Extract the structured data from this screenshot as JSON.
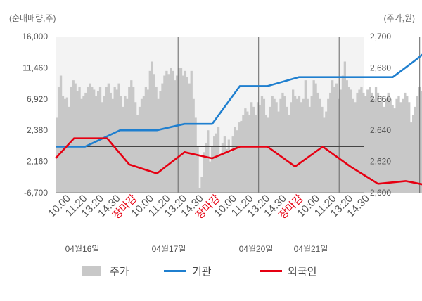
{
  "chart_data": {
    "type": "line",
    "left_axis_title": "(순매매량,주)",
    "right_axis_title": "(주가,원)",
    "left_ticks": [
      "16,000",
      "11,460",
      "6,920",
      "2,380",
      "-2,160",
      "-6,700"
    ],
    "right_ticks": [
      "2,700",
      "2,680",
      "2,660",
      "2,640",
      "2,620",
      "2,600"
    ],
    "ylim_left": [
      -6700,
      16000
    ],
    "ylim_right": [
      2600,
      2700
    ],
    "x_tick_labels": [
      "10:00",
      "11:20",
      "13:20",
      "14:30",
      "장마감",
      "10:00",
      "11:20",
      "13:20",
      "14:30",
      "장마감",
      "10:00",
      "11:20",
      "13:20",
      "14:30",
      "장마감",
      "10:00",
      "11:20",
      "13:20",
      "14:30"
    ],
    "x_tick_red": [
      false,
      false,
      false,
      false,
      true,
      false,
      false,
      false,
      false,
      true,
      false,
      false,
      false,
      false,
      true,
      false,
      false,
      false,
      false
    ],
    "date_labels": [
      "04월16일",
      "04월17일",
      "04월20일",
      "04월21일"
    ],
    "legend": [
      {
        "label": "주가",
        "color": "#c8c8c8"
      },
      {
        "label": "기관",
        "color": "#1f7fcf"
      },
      {
        "label": "외국인",
        "color": "#e60012"
      }
    ],
    "series": [
      {
        "name": "기관",
        "axis": "left",
        "x": [
          0,
          1.6,
          3.5,
          5.5,
          7,
          8.5,
          10,
          11.5,
          13.2,
          16,
          18.3,
          19.5,
          21,
          22.5
        ],
        "values": [
          0,
          0,
          2380,
          2380,
          3300,
          3300,
          8800,
          8800,
          10100,
          10100,
          10100,
          12500,
          15700,
          15700
        ]
      },
      {
        "name": "외국인",
        "axis": "left",
        "x": [
          0,
          1,
          2.8,
          4,
          5.5,
          7,
          8.5,
          10,
          11.5,
          13,
          14.5,
          16,
          17.5,
          19,
          20.5,
          22.5
        ],
        "values": [
          -1700,
          1200,
          1200,
          -2600,
          -3900,
          -800,
          -1700,
          0,
          0,
          -2900,
          0,
          -2900,
          -5400,
          -5000,
          -5800,
          -6500
        ]
      },
      {
        "name": "주가",
        "axis": "right",
        "x_range": [
          0,
          22.5
        ],
        "values": [
          2648,
          2668,
          2675,
          2662,
          2660,
          2661,
          2655,
          2668,
          2672,
          2670,
          2665,
          2668,
          2660,
          2662,
          2664,
          2668,
          2670,
          2668,
          2666,
          2662,
          2665,
          2668,
          2658,
          2662,
          2668,
          2670,
          2664,
          2660,
          2668,
          2666,
          2670,
          2662,
          2655,
          2662,
          2660,
          2668,
          2672,
          2668,
          2658,
          2650,
          2655,
          2660,
          2662,
          2668,
          2666,
          2678,
          2684,
          2676,
          2668,
          2660,
          2665,
          2670,
          2675,
          2678,
          2676,
          2680,
          2678,
          2672,
          2675,
          2680,
          2680,
          2675,
          2678,
          2674,
          2670,
          2678,
          2660,
          2648,
          2630,
          2603,
          2610,
          2626,
          2632,
          2640,
          2620,
          2630,
          2636,
          2638,
          2642,
          2624,
          2632,
          2636,
          2628,
          2634,
          2626,
          2636,
          2642,
          2640,
          2645,
          2646,
          2650,
          2654,
          2652,
          2650,
          2658,
          2655,
          2650,
          2658,
          2656,
          2662,
          2660,
          2650,
          2648,
          2655,
          2662,
          2660,
          2658,
          2652,
          2660,
          2664,
          2662,
          2655,
          2650,
          2658,
          2666,
          2662,
          2660,
          2662,
          2658,
          2660,
          2672,
          2660,
          2655,
          2662,
          2672,
          2670,
          2664,
          2660,
          2655,
          2648,
          2652,
          2660,
          2664,
          2672,
          2668,
          2670,
          2660,
          2666,
          2675,
          2684,
          2672,
          2668,
          2666,
          2660,
          2658,
          2664,
          2666,
          2668,
          2664,
          2662,
          2666,
          2668,
          2664,
          2660,
          2668,
          2664,
          2658,
          2662,
          2655,
          2660,
          2664,
          2660,
          2656,
          2654,
          2660,
          2662,
          2658,
          2660,
          2664,
          2662,
          2658,
          2645,
          2650,
          2655,
          2662,
          2668,
          2665,
          2660,
          2665,
          2685,
          2670,
          2662,
          2658,
          2655,
          2662,
          2664,
          2659,
          2658,
          2662,
          2660,
          2656,
          2655,
          2660,
          2660,
          2662,
          2658,
          2660,
          2655,
          2658,
          2661
        ]
      }
    ]
  }
}
